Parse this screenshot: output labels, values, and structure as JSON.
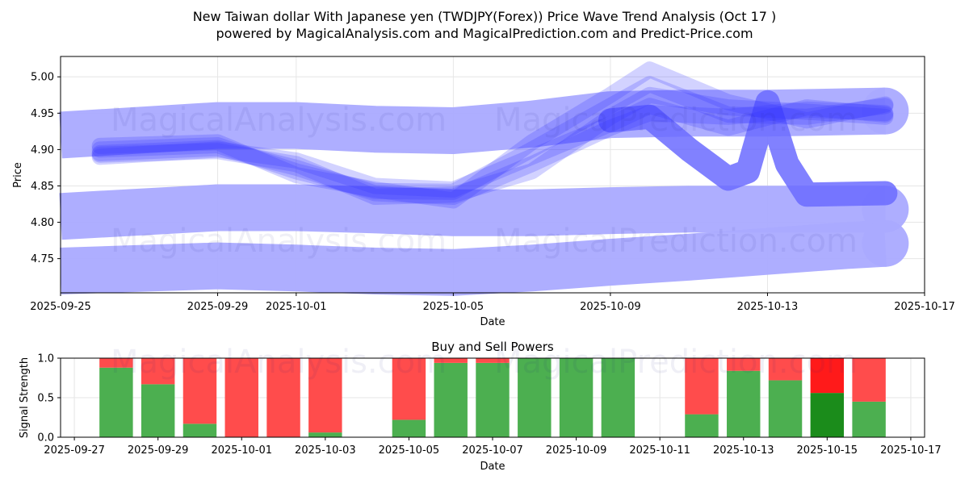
{
  "chart_data": [
    {
      "type": "line",
      "title_line1": "New Taiwan dollar With Japanese yen (TWDJPY(Forex)) Price Wave Trend Analysis (Oct 17 )",
      "title_line2": "powered by MagicalAnalysis.com and MagicalPrediction.com and Predict-Price.com",
      "xlabel": "Date",
      "ylabel": "Price",
      "xlim": [
        "2025-09-25",
        "2025-10-17"
      ],
      "ylim": [
        4.703,
        5.028
      ],
      "x_ticks": [
        "2025-09-25",
        "2025-09-29",
        "2025-10-01",
        "2025-10-05",
        "2025-10-09",
        "2025-10-13",
        "2025-10-17"
      ],
      "y_ticks": [
        4.75,
        4.8,
        4.85,
        4.9,
        4.95,
        5.0
      ],
      "y_tick_labels": [
        "4.75",
        "4.80",
        "4.85",
        "4.90",
        "4.95",
        "5.00"
      ],
      "watermarks": [
        "MagicalAnalysis.com",
        "MagicalPrediction.com"
      ],
      "series": [
        {
          "name": "wave-band-upper",
          "x": [
            "2025-09-25",
            "2025-09-29",
            "2025-10-01",
            "2025-10-03",
            "2025-10-05",
            "2025-10-07",
            "2025-10-09",
            "2025-10-11",
            "2025-10-13",
            "2025-10-15",
            "2025-10-16"
          ],
          "values": [
            4.92,
            4.933,
            4.933,
            4.928,
            4.926,
            4.935,
            4.948,
            4.95,
            4.95,
            4.952,
            4.953
          ]
        },
        {
          "name": "wave-band-middle",
          "x": [
            "2025-09-25",
            "2025-09-29",
            "2025-10-01",
            "2025-10-03",
            "2025-10-05",
            "2025-10-07",
            "2025-10-09",
            "2025-10-11",
            "2025-10-13",
            "2025-10-15",
            "2025-10-16"
          ],
          "values": [
            4.808,
            4.82,
            4.82,
            4.817,
            4.813,
            4.813,
            4.816,
            4.818,
            4.818,
            4.818,
            4.818
          ]
        },
        {
          "name": "wave-band-lower",
          "x": [
            "2025-09-25",
            "2025-09-29",
            "2025-10-01",
            "2025-10-03",
            "2025-10-05",
            "2025-10-07",
            "2025-10-09",
            "2025-10-11",
            "2025-10-13",
            "2025-10-15",
            "2025-10-16"
          ],
          "values": [
            4.733,
            4.74,
            4.737,
            4.733,
            4.731,
            4.737,
            4.745,
            4.752,
            4.76,
            4.768,
            4.771
          ]
        },
        {
          "name": "wave-spike",
          "x": [
            "2025-10-09",
            "2025-10-10",
            "2025-10-11",
            "2025-10-12",
            "2025-10-12.5",
            "2025-10-13",
            "2025-10-13.5",
            "2025-10-14",
            "2025-10-16"
          ],
          "values": [
            4.94,
            4.945,
            4.9,
            4.86,
            4.87,
            4.965,
            4.88,
            4.838,
            4.84
          ]
        },
        {
          "name": "price-wave-1",
          "x": [
            "2025-09-26",
            "2025-09-29",
            "2025-10-01",
            "2025-10-03",
            "2025-10-05",
            "2025-10-07",
            "2025-10-09",
            "2025-10-10",
            "2025-10-12",
            "2025-10-14",
            "2025-10-16"
          ],
          "values": [
            4.895,
            4.902,
            4.875,
            4.84,
            4.835,
            4.88,
            4.93,
            4.95,
            4.945,
            4.955,
            4.95
          ]
        },
        {
          "name": "price-wave-2",
          "x": [
            "2025-09-26",
            "2025-09-29",
            "2025-10-01",
            "2025-10-03",
            "2025-10-05",
            "2025-10-07",
            "2025-10-09",
            "2025-10-10",
            "2025-10-12",
            "2025-10-14",
            "2025-10-16"
          ],
          "values": [
            4.9,
            4.906,
            4.87,
            4.843,
            4.842,
            4.9,
            4.96,
            4.99,
            4.948,
            4.945,
            4.96
          ]
        },
        {
          "name": "price-wave-3",
          "x": [
            "2025-09-26",
            "2025-09-29",
            "2025-10-01",
            "2025-10-03",
            "2025-10-05",
            "2025-10-07",
            "2025-10-09",
            "2025-10-10",
            "2025-10-12",
            "2025-10-14",
            "2025-10-16"
          ],
          "values": [
            4.893,
            4.898,
            4.88,
            4.835,
            4.838,
            4.87,
            4.945,
            4.975,
            4.958,
            4.952,
            4.945
          ]
        },
        {
          "name": "price-wave-4",
          "x": [
            "2025-09-26",
            "2025-09-29",
            "2025-10-01",
            "2025-10-03",
            "2025-10-05",
            "2025-10-07",
            "2025-10-09",
            "2025-10-10",
            "2025-10-12",
            "2025-10-14",
            "2025-10-16"
          ],
          "values": [
            4.905,
            4.91,
            4.865,
            4.845,
            4.83,
            4.91,
            4.975,
            5.01,
            4.965,
            4.94,
            4.962
          ]
        },
        {
          "name": "price-wave-5",
          "x": [
            "2025-09-26",
            "2025-09-29",
            "2025-10-01",
            "2025-10-03",
            "2025-10-05",
            "2025-10-07",
            "2025-10-09",
            "2025-10-10",
            "2025-10-12",
            "2025-10-14",
            "2025-10-16"
          ],
          "values": [
            4.89,
            4.9,
            4.885,
            4.85,
            4.845,
            4.89,
            4.935,
            4.96,
            4.93,
            4.958,
            4.948
          ]
        }
      ]
    },
    {
      "type": "bar",
      "title": "Buy and Sell Powers",
      "xlabel": "Date",
      "ylabel": "Signal Strength",
      "xlim": [
        "2025-09-27",
        "2025-10-17"
      ],
      "ylim": [
        0,
        1.0
      ],
      "x_ticks": [
        "2025-09-27",
        "2025-09-29",
        "2025-10-01",
        "2025-10-03",
        "2025-10-05",
        "2025-10-07",
        "2025-10-09",
        "2025-10-11",
        "2025-10-13",
        "2025-10-15",
        "2025-10-17"
      ],
      "y_ticks": [
        0.0,
        0.5,
        1.0
      ],
      "y_tick_labels": [
        "0.0",
        "0.5",
        "1.0"
      ],
      "watermarks": [
        "MagicalAnalysis.com",
        "MagicalPrediction.com"
      ],
      "categories": [
        "2025-09-28",
        "2025-09-29",
        "2025-09-30",
        "2025-10-01",
        "2025-10-02",
        "2025-10-03",
        "2025-10-05",
        "2025-10-06",
        "2025-10-07",
        "2025-10-08",
        "2025-10-09",
        "2025-10-10",
        "2025-10-12",
        "2025-10-13",
        "2025-10-14",
        "2025-10-15",
        "2025-10-16"
      ],
      "series": [
        {
          "name": "Buy",
          "values": [
            0.88,
            0.67,
            0.17,
            0.0,
            0.0,
            0.06,
            0.22,
            0.94,
            0.94,
            1.0,
            1.0,
            1.0,
            0.29,
            0.84,
            0.72,
            0.56,
            0.45
          ]
        },
        {
          "name": "Sell",
          "values": [
            0.12,
            0.33,
            0.83,
            1.0,
            1.0,
            0.94,
            0.78,
            0.06,
            0.06,
            0.0,
            0.0,
            0.0,
            0.71,
            0.16,
            0.28,
            0.44,
            0.55
          ]
        }
      ],
      "highlight_index": 15
    }
  ],
  "colors": {
    "band": "#aaaaff",
    "wave": "#3333ff",
    "spike": "#6b6bff",
    "buy": "#4caf50",
    "sell": "#ff4c4c",
    "buy_highlight": "#1b8c1b",
    "sell_highlight": "#ff1a1a",
    "grid": "#e6e6e6"
  }
}
